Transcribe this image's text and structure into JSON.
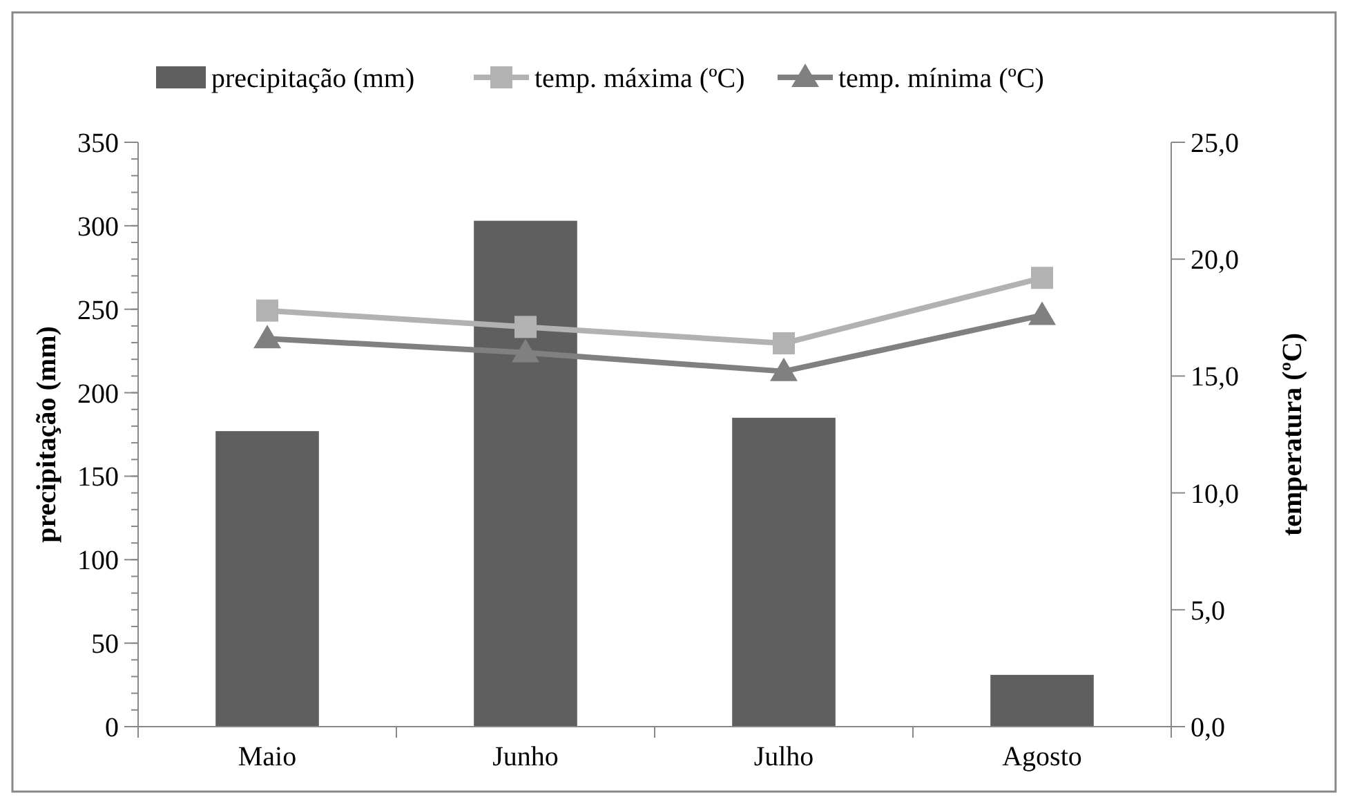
{
  "chart_data": {
    "type": "bar",
    "categories": [
      "Maio",
      "Junho",
      "Julho",
      "Agosto"
    ],
    "ylabel": "precipitação (mm)",
    "y2label": "temperatura (ºC)",
    "ylim": [
      0,
      350
    ],
    "yticks": [
      0,
      50,
      100,
      150,
      200,
      250,
      300,
      350
    ],
    "y2lim": [
      0,
      25
    ],
    "y2ticks": [
      {
        "value": 0,
        "label": "0,0"
      },
      {
        "value": 5,
        "label": "5,0"
      },
      {
        "value": 10,
        "label": "10,0"
      },
      {
        "value": 15,
        "label": "15,0"
      },
      {
        "value": 20,
        "label": "20,0"
      },
      {
        "value": 25,
        "label": "25,0"
      }
    ],
    "legend": "top",
    "grid": false,
    "series": [
      {
        "name": "precipitação (mm)",
        "color": "#5f5f5f",
        "values": [
          177,
          303,
          185,
          31
        ]
      },
      {
        "name": "temp. máxima (ºC)",
        "type": "line",
        "axis": "y2",
        "marker": "square",
        "color": "#b2b2b2",
        "values": [
          17.8,
          17.1,
          16.4,
          19.2
        ]
      },
      {
        "name": "temp. mínima (ºC)",
        "type": "line",
        "axis": "y2",
        "marker": "triangle",
        "color": "#808080",
        "values": [
          16.6,
          16.0,
          15.2,
          17.6
        ]
      }
    ]
  }
}
